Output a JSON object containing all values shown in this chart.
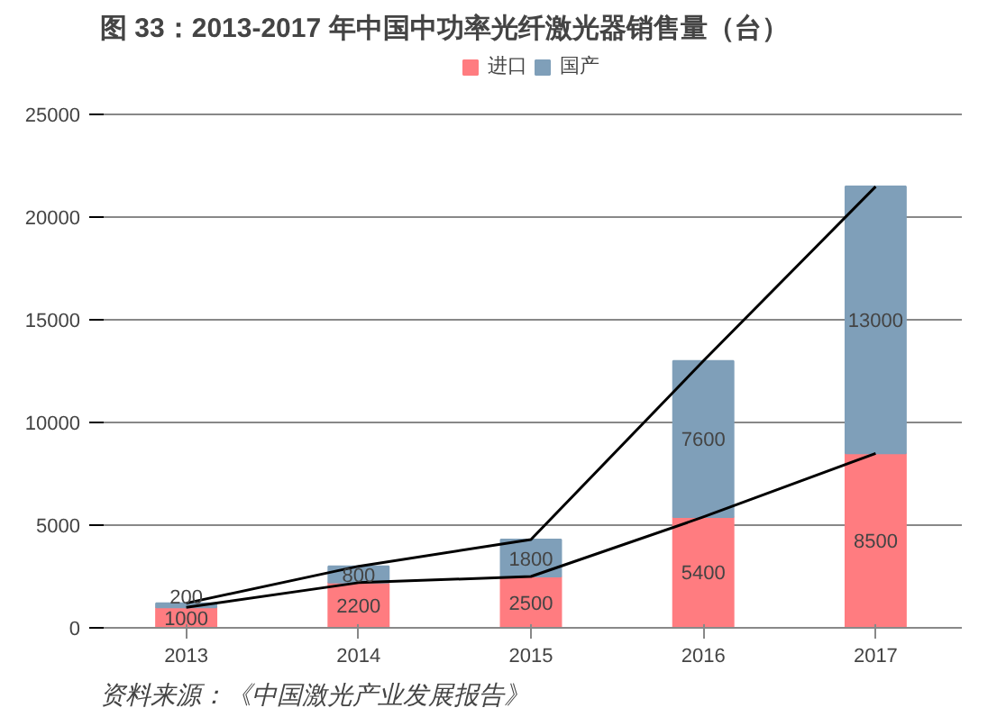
{
  "chart_data": {
    "type": "bar",
    "title": "图 33：2013-2017 年中国中功率光纤激光器销售量（台）",
    "categories": [
      "2013",
      "2014",
      "2015",
      "2016",
      "2017"
    ],
    "stacked": true,
    "series": [
      {
        "name": "进口",
        "color": "#ff7c80",
        "values": [
          1000,
          2200,
          2500,
          5400,
          8500
        ],
        "value_labels": [
          "1000",
          "2200",
          "2500",
          "5400",
          "8500"
        ]
      },
      {
        "name": "国产",
        "color": "#7f9fb9",
        "values": [
          200,
          800,
          1800,
          7600,
          13000
        ],
        "value_labels": [
          "200",
          "800",
          "1800",
          "7600",
          "13000"
        ]
      },
      {
        "type": "line",
        "color": "#000000",
        "values": [
          1000,
          2200,
          2500,
          5400,
          8500
        ]
      },
      {
        "type": "line",
        "color": "#000000",
        "values": [
          1200,
          3000,
          4300,
          13000,
          21500
        ]
      }
    ],
    "ylim": [
      0,
      25000
    ],
    "yticks": [
      0,
      5000,
      10000,
      15000,
      20000,
      25000
    ],
    "grid": "y",
    "legend": "top",
    "annotations": [
      "资料来源：《中国激光产业发展报告》"
    ]
  }
}
